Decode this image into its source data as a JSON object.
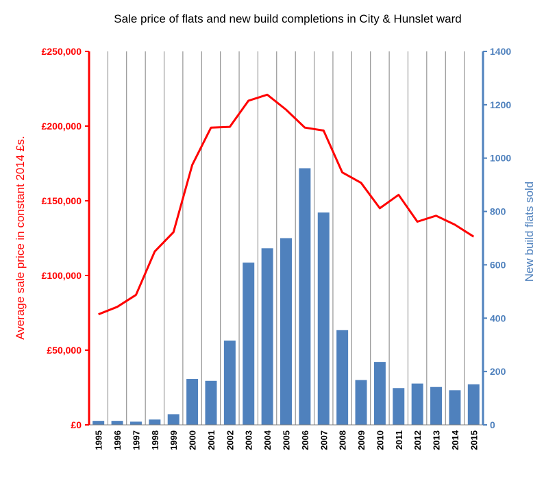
{
  "colors": {
    "price_line": "#ff0000",
    "bars": "#4f81bd",
    "left_axis": "#ff0000",
    "right_axis": "#4f81bd",
    "right_tick_text": "#4f81bd",
    "grid": "#7f7f7f"
  },
  "chart_data": {
    "type": "bar",
    "title": "Sale price of flats and new build completions in City & Hunslet ward",
    "categories": [
      "1995",
      "1996",
      "1997",
      "1998",
      "1999",
      "2000",
      "2001",
      "2002",
      "2003",
      "2004",
      "2005",
      "2006",
      "2007",
      "2008",
      "2009",
      "2010",
      "2011",
      "2012",
      "2013",
      "2014",
      "2015"
    ],
    "ylabel_left": "Average sale price in constant 2014 £s.",
    "ylabel_right": "New build flats sold",
    "ylim_left": [
      0,
      250000
    ],
    "ylim_right": [
      0,
      1400
    ],
    "yticks_left": [
      "£0",
      "£50,000",
      "£100,000",
      "£150,000",
      "£200,000",
      "£250,000"
    ],
    "yticks_right": [
      "0",
      "200",
      "400",
      "600",
      "800",
      "1000",
      "1200",
      "1400"
    ],
    "grid": "vertical",
    "legend": "none",
    "series": [
      {
        "type": "bar",
        "axis": "right",
        "values": [
          15,
          15,
          12,
          20,
          40,
          172,
          165,
          316,
          608,
          662,
          700,
          962,
          796,
          355,
          168,
          236,
          138,
          155,
          142,
          130,
          152
        ]
      },
      {
        "type": "line",
        "axis": "left",
        "values": [
          74000,
          79000,
          87000,
          116000,
          129000,
          174000,
          199000,
          199500,
          217000,
          221000,
          211000,
          199000,
          197000,
          169000,
          162000,
          145000,
          154000,
          136000,
          140000,
          134000,
          126000
        ]
      }
    ]
  }
}
